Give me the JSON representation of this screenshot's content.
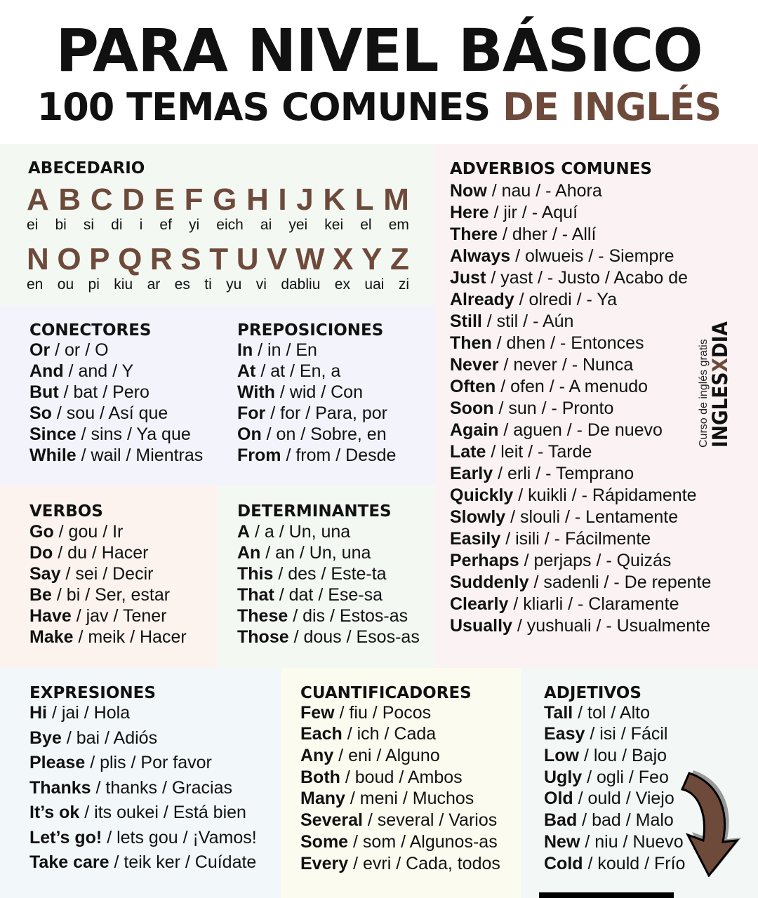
{
  "title": {
    "line1": "PARA NIVEL BÁSICO",
    "line2a": "100 TEMAS COMUNES ",
    "line2b": "DE INGLÉS"
  },
  "colors": {
    "accent": "#6e4a3b"
  },
  "abecedario": {
    "heading": "ABECEDARIO",
    "row1": {
      "letters": [
        "A",
        "B",
        "C",
        "D",
        "E",
        "F",
        "G",
        "H",
        "I",
        "J",
        "K",
        "L",
        "M"
      ],
      "pron": [
        "ei",
        "bi",
        "si",
        "di",
        "i",
        "ef",
        "yi",
        "eich",
        "ai",
        "yei",
        "kei",
        "el",
        "em"
      ]
    },
    "row2": {
      "letters": [
        "N",
        "O",
        "P",
        "Q",
        "R",
        "S",
        "T",
        "U",
        "V",
        "W",
        "X",
        "Y",
        "Z"
      ],
      "pron": [
        "en",
        "ou",
        "pi",
        "kiu",
        "ar",
        "es",
        "ti",
        "yu",
        "vi",
        "dabliu",
        "ex",
        "uai",
        "zi"
      ]
    }
  },
  "conectores": {
    "heading": "CONECTORES",
    "items": [
      [
        "Or",
        " / or / O"
      ],
      [
        "And",
        " / and / Y"
      ],
      [
        "But",
        " / bat / Pero"
      ],
      [
        "So",
        " / sou / Así que"
      ],
      [
        "Since",
        " / sins / Ya que"
      ],
      [
        "While",
        " / wail / Mientras"
      ]
    ]
  },
  "preposiciones": {
    "heading": "PREPOSICIONES",
    "items": [
      [
        "In",
        " / in / En"
      ],
      [
        "At",
        " / at / En, a"
      ],
      [
        "With",
        " / wid / Con"
      ],
      [
        "For",
        " / for / Para, por"
      ],
      [
        "On",
        " / on / Sobre, en"
      ],
      [
        "From",
        " / from / Desde"
      ]
    ]
  },
  "verbos": {
    "heading": "VERBOS",
    "items": [
      [
        "Go",
        " / gou / Ir"
      ],
      [
        "Do",
        " / du / Hacer"
      ],
      [
        "Say",
        " / sei / Decir"
      ],
      [
        "Be",
        " / bi / Ser, estar"
      ],
      [
        "Have",
        " / jav / Tener"
      ],
      [
        "Make",
        " / meik / Hacer"
      ]
    ]
  },
  "determinantes": {
    "heading": "DETERMINANTES",
    "items": [
      [
        "A",
        " / a / Un, una"
      ],
      [
        "An",
        " / an / Un, una"
      ],
      [
        "This",
        " / des / Este-ta"
      ],
      [
        "That",
        " / dat / Ese-sa"
      ],
      [
        "These",
        " / dis / Estos-as"
      ],
      [
        "Those",
        " / dous / Esos-as"
      ]
    ]
  },
  "adverbios": {
    "heading": "ADVERBIOS COMUNES",
    "items": [
      [
        "Now",
        " / nau / - Ahora"
      ],
      [
        "Here",
        " / jir / - Aquí"
      ],
      [
        "There",
        " / dher / - Allí"
      ],
      [
        "Always",
        " / olwueis / - Siempre"
      ],
      [
        "Just",
        " / yast / - Justo / Acabo de"
      ],
      [
        "Already",
        " / olredi / - Ya"
      ],
      [
        "Still",
        " / stil / - Aún"
      ],
      [
        "Then",
        " / dhen / - Entonces"
      ],
      [
        "Never",
        " / never / - Nunca"
      ],
      [
        "Often",
        " / ofen / - A menudo"
      ],
      [
        "Soon",
        " / sun / - Pronto"
      ],
      [
        "Again",
        " / aguen / - De nuevo"
      ],
      [
        "Late",
        " / leit / - Tarde"
      ],
      [
        "Early",
        " / erli / - Temprano"
      ],
      [
        "Quickly",
        " / kuikli / - Rápidamente"
      ],
      [
        "Slowly",
        " / slouli / - Lentamente"
      ],
      [
        "Easily",
        " / isili / - Fácilmente"
      ],
      [
        "Perhaps",
        " / perjaps / - Quizás"
      ],
      [
        "Suddenly",
        " / sadenli / - De repente"
      ],
      [
        "Clearly",
        " / kliarli / - Claramente"
      ],
      [
        "Usually",
        " / yushuali / - Usualmente"
      ]
    ]
  },
  "expresiones": {
    "heading": "EXPRESIONES",
    "items": [
      [
        "Hi",
        " / jai / Hola"
      ],
      [
        "Bye",
        " / bai / Adiós"
      ],
      [
        "Please",
        " / plis / Por favor"
      ],
      [
        "Thanks",
        " / thanks / Gracias"
      ],
      [
        "It’s ok",
        " / its oukei / Está bien"
      ],
      [
        "Let’s go!",
        " / lets gou / ¡Vamos!"
      ],
      [
        "Take care",
        " / teik ker / Cuídate"
      ]
    ]
  },
  "cuantificadores": {
    "heading": "CUANTIFICADORES",
    "items": [
      [
        "Few",
        " / fiu / Pocos"
      ],
      [
        "Each",
        " / ich / Cada"
      ],
      [
        "Any",
        " / eni / Alguno"
      ],
      [
        "Both",
        " / boud / Ambos"
      ],
      [
        "Many",
        " / meni / Muchos"
      ],
      [
        "Several",
        " / several / Varios"
      ],
      [
        "Some",
        " / som / Algunos-as"
      ],
      [
        "Every",
        " / evri / Cada, todos"
      ]
    ]
  },
  "adjetivos": {
    "heading": "ADJETIVOS",
    "items": [
      [
        "Tall",
        " / tol / Alto"
      ],
      [
        "Easy",
        " / isi / Fácil"
      ],
      [
        "Low",
        " / lou / Bajo"
      ],
      [
        "Ugly",
        " / ogli / Feo"
      ],
      [
        "Old",
        " / ould / Viejo"
      ],
      [
        "Bad",
        " / bad / Malo"
      ],
      [
        "New",
        " / niu / Nuevo"
      ],
      [
        "Cold",
        " / kould / Frío"
      ]
    ]
  },
  "logo": {
    "tagline": "Curso de inglés gratis",
    "brand_a": "INGLES",
    "brand_x": "X",
    "brand_b": "DIA"
  },
  "icons": {
    "arrow": "curved-arrow-down-right-icon"
  }
}
